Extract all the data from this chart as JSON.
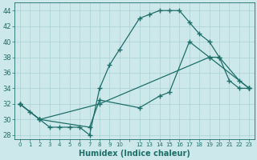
{
  "xlabel": "Humidex (Indice chaleur)",
  "bg_color": "#cce8ea",
  "grid_color": "#aad0d4",
  "line_color": "#1e6e6a",
  "line1_x": [
    0,
    1,
    2,
    3,
    4,
    5,
    6,
    7,
    8,
    9,
    10,
    12,
    13,
    14,
    15,
    16,
    17,
    18,
    19,
    20,
    21,
    22,
    23
  ],
  "line1_y": [
    32,
    31,
    30,
    29,
    29,
    29,
    29,
    28,
    34,
    37,
    39,
    43,
    43.5,
    44,
    44,
    44,
    42.5,
    41,
    40,
    38,
    35,
    34,
    34
  ],
  "line2_x": [
    0,
    2,
    7,
    8,
    12,
    14,
    15,
    17,
    19,
    20,
    22,
    23
  ],
  "line2_y": [
    32,
    30,
    29,
    32.5,
    31.5,
    33,
    33.5,
    40,
    38,
    38,
    35,
    34
  ],
  "line3_x": [
    0,
    2,
    8,
    19,
    23
  ],
  "line3_y": [
    32,
    30,
    32,
    38,
    34
  ],
  "ylim": [
    27.5,
    45
  ],
  "xlim": [
    -0.5,
    23.5
  ],
  "yticks": [
    28,
    30,
    32,
    34,
    36,
    38,
    40,
    42,
    44
  ],
  "xtick_labels": [
    "0",
    "1",
    "2",
    "3",
    "4",
    "5",
    "6",
    "7",
    "8",
    "9",
    "10",
    "",
    "12",
    "13",
    "14",
    "15",
    "16",
    "17",
    "18",
    "19",
    "20",
    "21",
    "22",
    "23"
  ]
}
